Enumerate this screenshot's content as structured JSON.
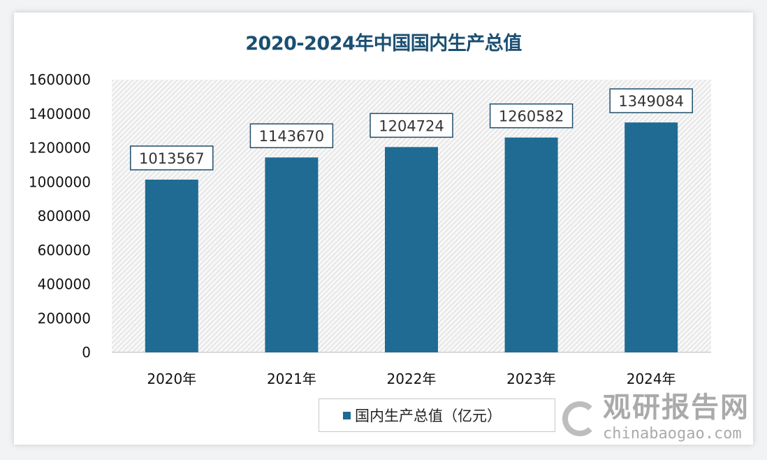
{
  "chart_data": {
    "type": "bar",
    "title": "2020-2024年中国国内生产总值",
    "categories": [
      "2020年",
      "2021年",
      "2022年",
      "2023年",
      "2024年"
    ],
    "series": [
      {
        "name": "国内生产总值（亿元）",
        "values": [
          1013567,
          1143670,
          1204724,
          1260582,
          1349084
        ]
      }
    ],
    "ylim": [
      0,
      1600000
    ],
    "yticks": [
      "0",
      "200000",
      "400000",
      "600000",
      "800000",
      "1000000",
      "1200000",
      "1400000",
      "1600000"
    ],
    "grid": false,
    "legend_position": "bottom",
    "bar_color": "#1f6b93",
    "plot_background": "diagonal hatch"
  },
  "watermark": {
    "name": "观研报告网",
    "url": "chinabaogao.com"
  }
}
